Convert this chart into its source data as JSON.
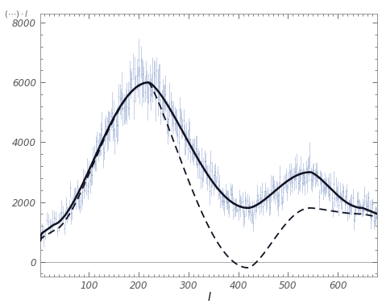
{
  "xlabel": "l",
  "xlim": [
    2,
    680
  ],
  "ylim": [
    -500,
    8300
  ],
  "yticks": [
    0,
    2000,
    4000,
    6000,
    8000
  ],
  "xticks": [
    100,
    200,
    300,
    400,
    500,
    600
  ],
  "solid_line_color": "#111122",
  "dashed_line_color": "#111122",
  "data_color": "#8099bb",
  "errorbar_color": "#8099cc",
  "hline_color": "#aaaaaa",
  "background_color": "#ffffff",
  "spine_color": "#888888",
  "tick_color": "#555555"
}
